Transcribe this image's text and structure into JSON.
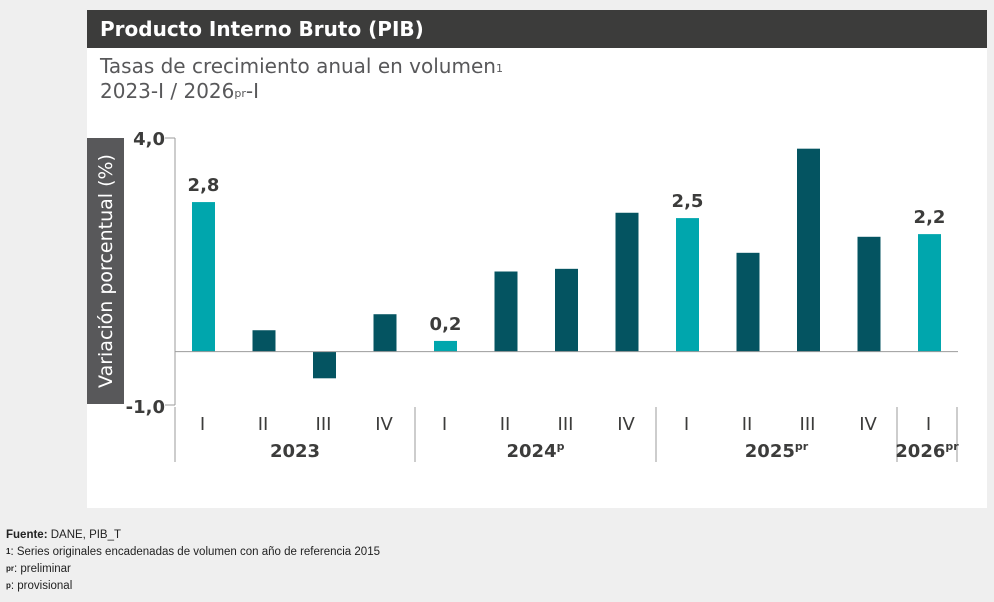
{
  "header": {
    "title": "Producto Interno Bruto (PIB)",
    "subtitle_line1": "Tasas de crecimiento anual en volumen",
    "subtitle_line1_sup": "1",
    "subtitle_line2_a": "2023-I / 2026",
    "subtitle_line2_sup": "pr",
    "subtitle_line2_b": "-I"
  },
  "colors": {
    "highlight": "#00a6ad",
    "regular": "#045461",
    "axis": "#9b9b9b",
    "title_bg": "#3c3c3b",
    "ylabel_bg": "#58585a"
  },
  "chart_data": {
    "type": "bar",
    "ylabel": "Variación porcentual (%)",
    "ylim": [
      -1.0,
      4.0
    ],
    "yticks": [
      "4,0",
      "-1,0"
    ],
    "categories": [
      "I",
      "II",
      "III",
      "IV",
      "I",
      "II",
      "III",
      "IV",
      "I",
      "II",
      "III",
      "IV",
      "I"
    ],
    "values": [
      2.8,
      0.4,
      -0.5,
      0.7,
      0.2,
      1.5,
      1.55,
      2.6,
      2.5,
      1.85,
      3.8,
      2.15,
      2.2
    ],
    "highlighted": [
      true,
      false,
      false,
      false,
      true,
      false,
      false,
      false,
      true,
      false,
      false,
      false,
      true
    ],
    "data_labels": [
      "2,8",
      "",
      "",
      "",
      "0,2",
      "",
      "",
      "",
      "2,5",
      "",
      "",
      "",
      "2,2"
    ],
    "groups": [
      {
        "label": "2023",
        "sup": "",
        "count": 4
      },
      {
        "label": "2024",
        "sup": "p",
        "count": 4
      },
      {
        "label": "2025",
        "sup": "pr",
        "count": 4
      },
      {
        "label": "2026",
        "sup": "pr",
        "count": 1
      }
    ]
  },
  "notes": {
    "source_label": "Fuente:",
    "source_text": " DANE, PIB_T",
    "n1_sup": "1",
    "n1_text": ": Series originales encadenadas de volumen con año de referencia 2015",
    "n2_sup": "pr",
    "n2_text": ": preliminar",
    "n3_sup": "p",
    "n3_text": ": provisional"
  }
}
